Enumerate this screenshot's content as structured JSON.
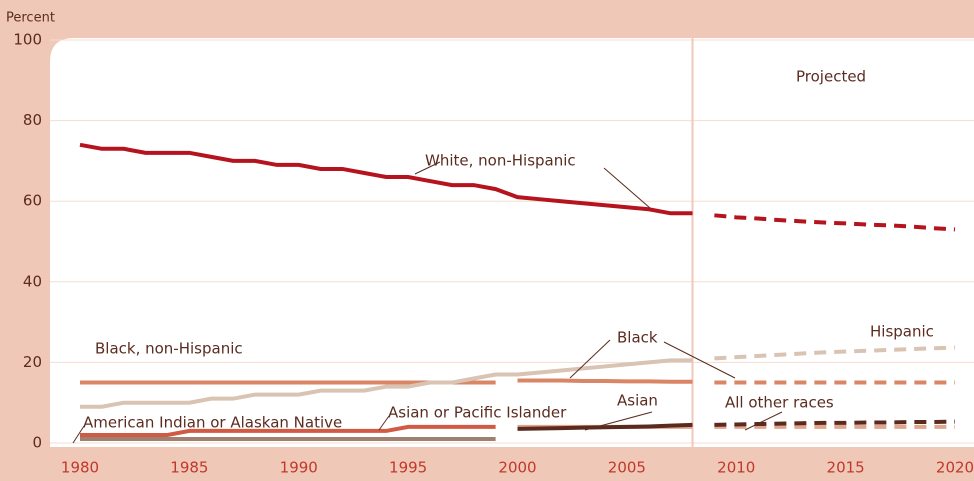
{
  "chart_data": {
    "type": "line",
    "y_axis_label": "Percent",
    "projected": {
      "label": "Projected",
      "from": 2008
    },
    "x": [
      1980,
      1981,
      1982,
      1983,
      1984,
      1985,
      1986,
      1987,
      1988,
      1989,
      1990,
      1991,
      1992,
      1993,
      1994,
      1995,
      1996,
      1997,
      1998,
      1999,
      2000,
      2001,
      2002,
      2003,
      2004,
      2005,
      2006,
      2007,
      2008,
      2009,
      2010,
      2011,
      2012,
      2013,
      2014,
      2015,
      2016,
      2017,
      2018,
      2019,
      2020
    ],
    "xlim": [
      1980,
      2020
    ],
    "xticks": [
      1980,
      1985,
      1990,
      1995,
      2000,
      2005,
      2010,
      2015,
      2020
    ],
    "ylim": [
      0,
      100
    ],
    "yticks": [
      0,
      20,
      40,
      60,
      80,
      100
    ],
    "grid": true,
    "series": [
      {
        "name": "White, non-Hispanic",
        "color": "#b5141e",
        "values": [
          74,
          73,
          73,
          72,
          72,
          72,
          71,
          70,
          70,
          69,
          69,
          68,
          68,
          67,
          66,
          66,
          65,
          64,
          64,
          63,
          61,
          60.5,
          60,
          59.5,
          59,
          58.5,
          58,
          57,
          57,
          56.5,
          56,
          55.7,
          55.3,
          55,
          54.7,
          54.5,
          54.2,
          54,
          53.7,
          53.3,
          53
        ]
      },
      {
        "name": "Black, non-Hispanic",
        "color": "#d98566",
        "values": [
          15,
          15,
          15,
          15,
          15,
          15,
          15,
          15,
          15,
          15,
          15,
          15,
          15,
          15,
          15,
          15,
          15,
          15,
          15,
          15,
          null,
          null,
          null,
          null,
          null,
          null,
          null,
          null,
          null,
          null,
          null,
          null,
          null,
          null,
          null,
          null,
          null,
          null,
          null,
          null,
          null
        ]
      },
      {
        "name": "Black",
        "color": "#d98566",
        "values": [
          null,
          null,
          null,
          null,
          null,
          null,
          null,
          null,
          null,
          null,
          null,
          null,
          null,
          null,
          null,
          null,
          null,
          null,
          null,
          null,
          15.5,
          15.5,
          15.5,
          15.4,
          15.4,
          15.3,
          15.3,
          15.2,
          15.2,
          15,
          15,
          15,
          15,
          15,
          15,
          15,
          15,
          15,
          15,
          15,
          15
        ]
      },
      {
        "name": "Hispanic",
        "color": "#d9c3b3",
        "values": [
          9,
          9,
          10,
          10,
          10,
          10,
          11,
          11,
          12,
          12,
          12,
          13,
          13,
          13,
          14,
          14,
          15,
          15,
          16,
          17,
          17,
          17.5,
          18,
          18.5,
          19,
          19.5,
          20,
          20.5,
          20.5,
          21,
          21.3,
          21.6,
          21.9,
          22.2,
          22.5,
          22.7,
          22.9,
          23.1,
          23.3,
          23.5,
          23.7
        ]
      },
      {
        "name": "Asian or Pacific Islander",
        "color": "#d05a44",
        "values": [
          2,
          2,
          2,
          2,
          2,
          3,
          3,
          3,
          3,
          3,
          3,
          3,
          3,
          3,
          3,
          4,
          4,
          4,
          4,
          4,
          null,
          null,
          null,
          null,
          null,
          null,
          null,
          null,
          null,
          null,
          null,
          null,
          null,
          null,
          null,
          null,
          null,
          null,
          null,
          null,
          null
        ]
      },
      {
        "name": "Asian",
        "color": "#e0a58c",
        "values": [
          null,
          null,
          null,
          null,
          null,
          null,
          null,
          null,
          null,
          null,
          null,
          null,
          null,
          null,
          null,
          null,
          null,
          null,
          null,
          null,
          4,
          4,
          4,
          4,
          4,
          4,
          4,
          4,
          4,
          4,
          4,
          4,
          4,
          4,
          4,
          4,
          4,
          4,
          4,
          4,
          4
        ]
      },
      {
        "name": "American Indian or Alaskan Native",
        "color": "#a08070",
        "values": [
          1,
          1,
          1,
          1,
          1,
          1,
          1,
          1,
          1,
          1,
          1,
          1,
          1,
          1,
          1,
          1,
          1,
          1,
          1,
          1,
          null,
          null,
          null,
          null,
          null,
          null,
          null,
          null,
          null,
          null,
          null,
          null,
          null,
          null,
          null,
          null,
          null,
          null,
          null,
          null,
          null
        ]
      },
      {
        "name": "All other races",
        "color": "#5a2a1e",
        "values": [
          null,
          null,
          null,
          null,
          null,
          null,
          null,
          null,
          null,
          null,
          null,
          null,
          null,
          null,
          null,
          null,
          null,
          null,
          null,
          null,
          3.5,
          3.6,
          3.7,
          3.8,
          3.9,
          4,
          4.1,
          4.3,
          4.5,
          4.5,
          4.6,
          4.7,
          4.8,
          4.9,
          5,
          5,
          5.1,
          5.1,
          5.2,
          5.2,
          5.3
        ]
      }
    ]
  }
}
